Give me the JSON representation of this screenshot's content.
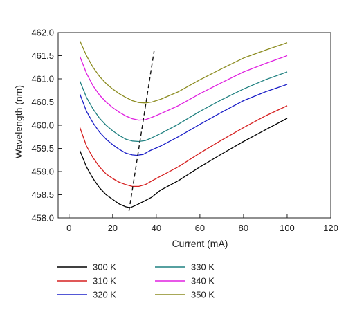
{
  "chart_data": {
    "type": "line",
    "xlabel": "Current (mA)",
    "ylabel": "Wavelength (nm)",
    "xlim": [
      -5,
      120
    ],
    "ylim": [
      458.0,
      462.0
    ],
    "xticks": [
      "0",
      "20",
      "40",
      "60",
      "80",
      "100",
      "120"
    ],
    "yticks": [
      "458.0",
      "458.5",
      "459.0",
      "459.5",
      "460.0",
      "460.5",
      "461.0",
      "461.5",
      "462.0"
    ],
    "xtick_values": [
      0,
      20,
      40,
      60,
      80,
      100,
      120
    ],
    "ytick_values": [
      458.0,
      458.5,
      459.0,
      459.5,
      460.0,
      460.5,
      461.0,
      461.5,
      462.0
    ],
    "grid": false,
    "legend_position": "bottom",
    "series": [
      {
        "name": "300 K",
        "color": "#000000",
        "x": [
          5,
          8,
          11,
          14,
          17,
          20,
          23,
          26,
          28,
          31,
          34,
          38,
          42,
          50,
          60,
          70,
          80,
          90,
          100
        ],
        "y": [
          459.45,
          459.1,
          458.85,
          458.65,
          458.5,
          458.4,
          458.3,
          458.24,
          458.22,
          458.28,
          458.35,
          458.45,
          458.6,
          458.8,
          459.1,
          459.38,
          459.65,
          459.9,
          460.15
        ]
      },
      {
        "name": "310 K",
        "color": "#d62020",
        "x": [
          5,
          8,
          11,
          14,
          17,
          20,
          23,
          26,
          29,
          32,
          35,
          38,
          42,
          50,
          60,
          70,
          80,
          90,
          100
        ],
        "y": [
          459.95,
          459.55,
          459.3,
          459.1,
          458.95,
          458.85,
          458.77,
          458.72,
          458.68,
          458.68,
          458.72,
          458.8,
          458.9,
          459.1,
          459.4,
          459.68,
          459.95,
          460.2,
          460.42
        ]
      },
      {
        "name": "320 K",
        "color": "#1c20c8",
        "x": [
          5,
          8,
          11,
          14,
          17,
          20,
          23,
          26,
          29,
          31,
          34,
          37,
          42,
          50,
          60,
          70,
          80,
          90,
          100
        ],
        "y": [
          460.67,
          460.3,
          460.05,
          459.85,
          459.7,
          459.58,
          459.48,
          459.4,
          459.36,
          459.35,
          459.37,
          459.45,
          459.55,
          459.75,
          460.02,
          460.28,
          460.53,
          460.72,
          460.88
        ]
      },
      {
        "name": "330 K",
        "color": "#1f8080",
        "x": [
          5,
          8,
          11,
          14,
          17,
          20,
          23,
          26,
          29,
          32,
          35,
          38,
          42,
          50,
          60,
          70,
          80,
          90,
          100
        ],
        "y": [
          460.95,
          460.6,
          460.35,
          460.15,
          460.0,
          459.88,
          459.78,
          459.7,
          459.66,
          459.65,
          459.67,
          459.73,
          459.82,
          460.02,
          460.3,
          460.55,
          460.78,
          460.98,
          461.15
        ]
      },
      {
        "name": "340 K",
        "color": "#e020e0",
        "x": [
          5,
          8,
          11,
          14,
          17,
          20,
          23,
          26,
          29,
          32,
          35,
          38,
          42,
          50,
          60,
          70,
          80,
          90,
          100
        ],
        "y": [
          461.48,
          461.12,
          460.85,
          460.65,
          460.5,
          460.38,
          460.28,
          460.2,
          460.14,
          460.11,
          460.12,
          460.17,
          460.25,
          460.42,
          460.68,
          460.92,
          461.15,
          461.33,
          461.5
        ]
      },
      {
        "name": "350 K",
        "color": "#8c8c20",
        "x": [
          5,
          8,
          11,
          14,
          17,
          20,
          23,
          26,
          29,
          32,
          35,
          38,
          42,
          50,
          60,
          70,
          80,
          90,
          100
        ],
        "y": [
          461.82,
          461.5,
          461.25,
          461.05,
          460.9,
          460.78,
          460.68,
          460.6,
          460.53,
          460.49,
          460.48,
          460.5,
          460.56,
          460.72,
          460.98,
          461.22,
          461.45,
          461.62,
          461.78
        ]
      }
    ],
    "trend_line": {
      "x": [
        27.5,
        39
      ],
      "y": [
        458.15,
        461.6
      ]
    }
  }
}
